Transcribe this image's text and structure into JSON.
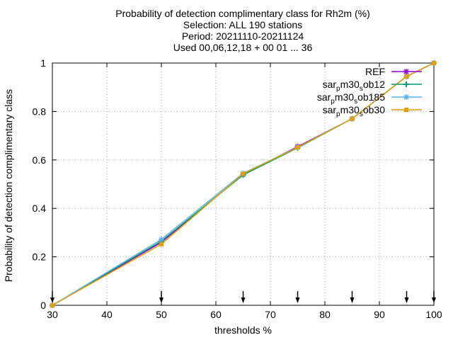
{
  "chart_data": {
    "type": "line",
    "title_lines": [
      "Probability of detection complimentary class  for Rh2m (%)",
      "Selection: ALL    190 stations",
      "Period: 20211110-20211124",
      "Used 00,06,12,18 + 00 01 ... 36"
    ],
    "xlabel": "thresholds %",
    "ylabel": "Probability of detection complimentary class",
    "xlim": [
      30,
      100
    ],
    "ylim": [
      0,
      1
    ],
    "xticks": [
      30,
      40,
      50,
      60,
      70,
      80,
      90,
      100
    ],
    "yticks": [
      0,
      0.2,
      0.4,
      0.6,
      0.8,
      1
    ],
    "grid": true,
    "legend_position": "top-right",
    "threshold_markers": [
      30,
      50,
      65,
      75,
      85,
      95,
      100
    ],
    "series": [
      {
        "name": "REF",
        "legend_parts": [
          {
            "t": "REF",
            "sub": false
          }
        ],
        "color": "#9400d3",
        "marker": "star",
        "x": [
          30,
          50,
          65,
          75,
          85,
          95,
          100
        ],
        "y": [
          0.0,
          0.26,
          0.54,
          0.655,
          0.77,
          0.945,
          1.0
        ]
      },
      {
        "name": "sar_pm30_sob12",
        "legend_parts": [
          {
            "t": "sar",
            "sub": false
          },
          {
            "t": "p",
            "sub": true
          },
          {
            "t": "m30",
            "sub": false
          },
          {
            "t": "s",
            "sub": true
          },
          {
            "t": "ob12",
            "sub": false
          }
        ],
        "color": "#009e73",
        "marker": "plus",
        "x": [
          30,
          50,
          65,
          75,
          85,
          95,
          100
        ],
        "y": [
          0.0,
          0.265,
          0.538,
          0.65,
          0.77,
          0.945,
          1.0
        ]
      },
      {
        "name": "sar_pm30_sob185",
        "legend_parts": [
          {
            "t": "sar",
            "sub": false
          },
          {
            "t": "p",
            "sub": true
          },
          {
            "t": "m30",
            "sub": false
          },
          {
            "t": "s",
            "sub": true
          },
          {
            "t": "ob185",
            "sub": false
          }
        ],
        "color": "#56b4e9",
        "marker": "star",
        "x": [
          30,
          50,
          65,
          75,
          85,
          95,
          100
        ],
        "y": [
          0.0,
          0.272,
          0.545,
          0.652,
          0.77,
          0.945,
          1.0
        ]
      },
      {
        "name": "sar_pm30_sob30",
        "legend_parts": [
          {
            "t": "sar",
            "sub": false
          },
          {
            "t": "p",
            "sub": true
          },
          {
            "t": "m30",
            "sub": false
          },
          {
            "t": "s",
            "sub": true
          },
          {
            "t": "ob30",
            "sub": false
          }
        ],
        "color": "#e69f00",
        "marker": "square",
        "x": [
          30,
          50,
          65,
          75,
          85,
          95,
          100
        ],
        "y": [
          0.0,
          0.252,
          0.543,
          0.652,
          0.77,
          0.945,
          1.0
        ]
      }
    ]
  }
}
